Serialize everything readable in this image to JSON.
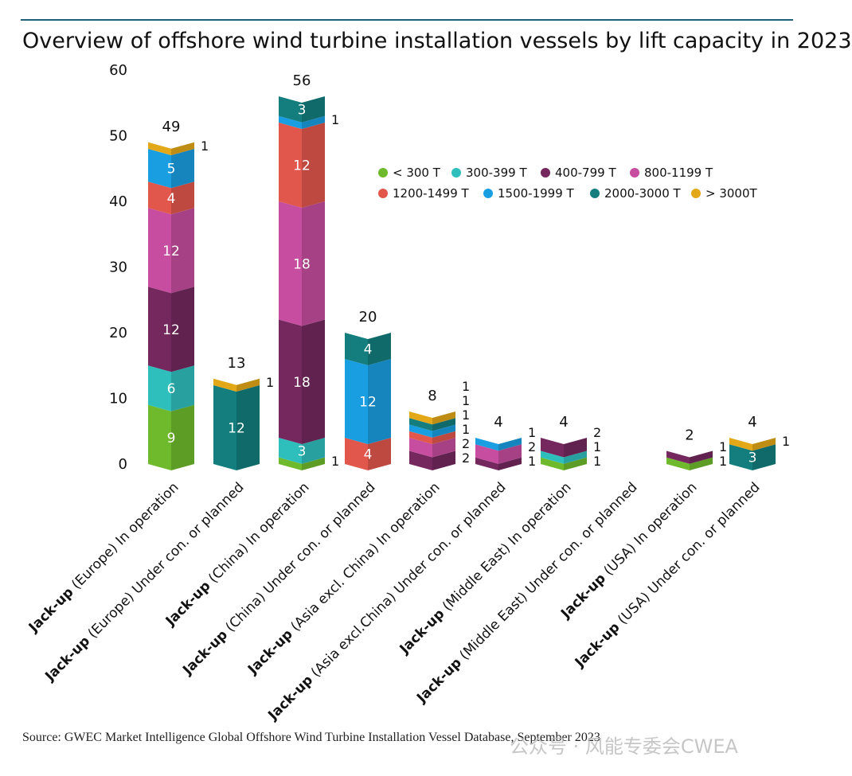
{
  "header": {
    "title": "Overview of offshore wind turbine installation vessels by lift capacity in 2023"
  },
  "footer": {
    "source": "Source: GWEC Market Intelligence Global Offshore Wind Turbine Installation Vessel Database, September 2023",
    "watermark": "公众号 · 风能专委会CWEA"
  },
  "chart_data": {
    "type": "bar",
    "stacked": true,
    "title": "Overview of offshore wind turbine installation vessels by lift capacity in 2023",
    "xlabel": "",
    "ylabel": "",
    "ylim": [
      0,
      60
    ],
    "yticks": [
      0,
      10,
      20,
      30,
      40,
      50,
      60
    ],
    "grid": false,
    "legend_position": "top-right",
    "categories": [
      {
        "bold": "Jack-up",
        "rest": " (Europe) In operation"
      },
      {
        "bold": "Jack-up",
        "rest": " (Europe) Under con. or planned"
      },
      {
        "bold": "Jack-up",
        "rest": " (China) In operation"
      },
      {
        "bold": "Jack-up",
        "rest": " (China) Under con. or planned"
      },
      {
        "bold": "Jack-up",
        "rest": " (Asia excl. China) In operation"
      },
      {
        "bold": "Jack-up",
        "rest": " (Asia excl.China) Under con. or planned"
      },
      {
        "bold": "Jack-up",
        "rest": " (Middle East) In operation"
      },
      {
        "bold": "Jack-up",
        "rest": " (Middle East) Under con. or planned"
      },
      {
        "bold": "Jack-up",
        "rest": " (USA) In operation"
      },
      {
        "bold": "Jack-up",
        "rest": " (USA) Under con. or planned"
      }
    ],
    "totals": [
      "49",
      "13",
      "56",
      "20",
      "8",
      "4",
      "4",
      "",
      "2",
      "4"
    ],
    "series": [
      {
        "name": "< 300 T",
        "color": "#6fba2c",
        "values": [
          9,
          0,
          1,
          0,
          0,
          0,
          1,
          0,
          1,
          0
        ]
      },
      {
        "name": "300-399 T",
        "color": "#2ebfbd",
        "values": [
          6,
          0,
          3,
          0,
          0,
          0,
          1,
          0,
          0,
          0
        ]
      },
      {
        "name": "400-799 T",
        "color": "#74285e",
        "values": [
          12,
          0,
          18,
          0,
          2,
          1,
          2,
          0,
          1,
          0
        ]
      },
      {
        "name": "800-1199 T",
        "color": "#c64d9f",
        "values": [
          12,
          0,
          18,
          0,
          2,
          2,
          0,
          0,
          0,
          0
        ]
      },
      {
        "name": "1200-1499 T",
        "color": "#e2574c",
        "values": [
          4,
          0,
          12,
          4,
          1,
          0,
          0,
          0,
          0,
          0
        ]
      },
      {
        "name": "1500-1999 T",
        "color": "#1a9ee2",
        "values": [
          5,
          0,
          1,
          12,
          1,
          1,
          0,
          0,
          0,
          0
        ]
      },
      {
        "name": "2000-3000 T",
        "color": "#147e7e",
        "values": [
          0,
          12,
          3,
          4,
          1,
          0,
          0,
          0,
          0,
          3
        ]
      },
      {
        "name": "> 3000T",
        "color": "#e3a817",
        "values": [
          1,
          1,
          0,
          0,
          1,
          0,
          0,
          0,
          0,
          1
        ]
      }
    ]
  }
}
